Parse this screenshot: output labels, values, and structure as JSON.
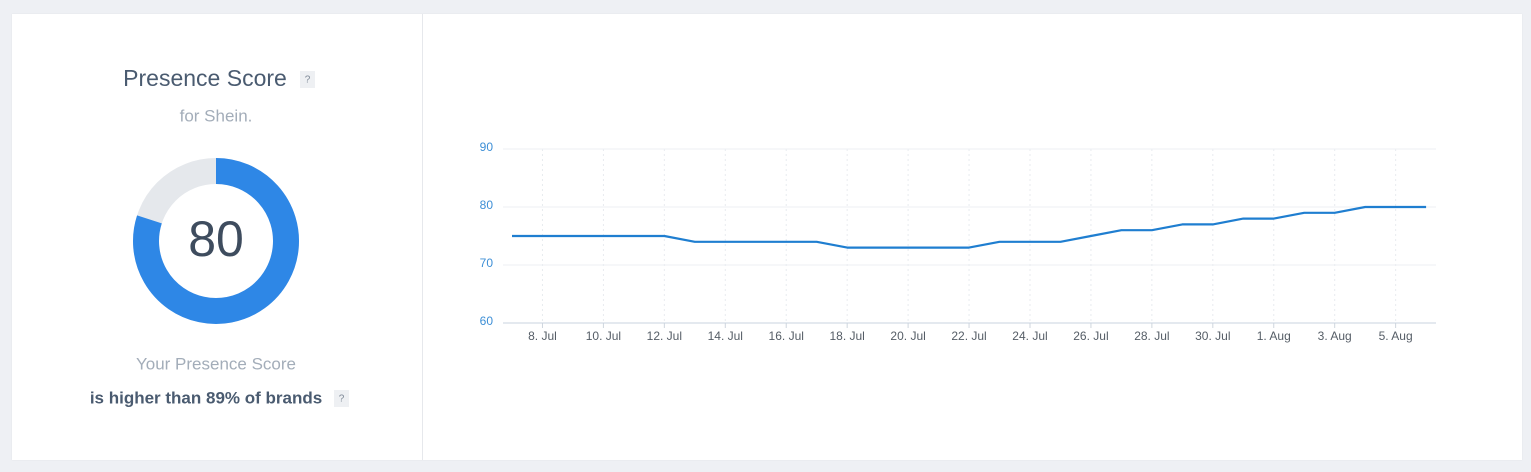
{
  "score_card": {
    "title": "Presence Score",
    "help": "?",
    "subtitle": "for Shein.",
    "gauge": {
      "value": 80,
      "range": [
        0,
        100
      ]
    },
    "caption": "Your Presence Score",
    "comparison": "is higher than 89% of brands",
    "comparison_help": "?"
  },
  "chart_data": {
    "type": "line",
    "categories": [
      null,
      "8. Jul",
      null,
      "10. Jul",
      null,
      "12. Jul",
      null,
      "14. Jul",
      null,
      "16. Jul",
      null,
      "18. Jul",
      null,
      "20. Jul",
      null,
      "22. Jul",
      null,
      "24. Jul",
      null,
      "26. Jul",
      null,
      "28. Jul",
      null,
      "30. Jul",
      null,
      "1. Aug",
      null,
      "3. Aug",
      null,
      "5. Aug",
      null
    ],
    "values": [
      75,
      75,
      75,
      75,
      75,
      75,
      74,
      74,
      74,
      74,
      74,
      73,
      73,
      73,
      73,
      73,
      74,
      74,
      74,
      75,
      76,
      76,
      77,
      77,
      78,
      78,
      79,
      79,
      80,
      80,
      80
    ],
    "color": "#1f7ed0",
    "ylim": [
      60,
      90
    ],
    "yticks": [
      60,
      70,
      80,
      90
    ],
    "grid": true
  }
}
